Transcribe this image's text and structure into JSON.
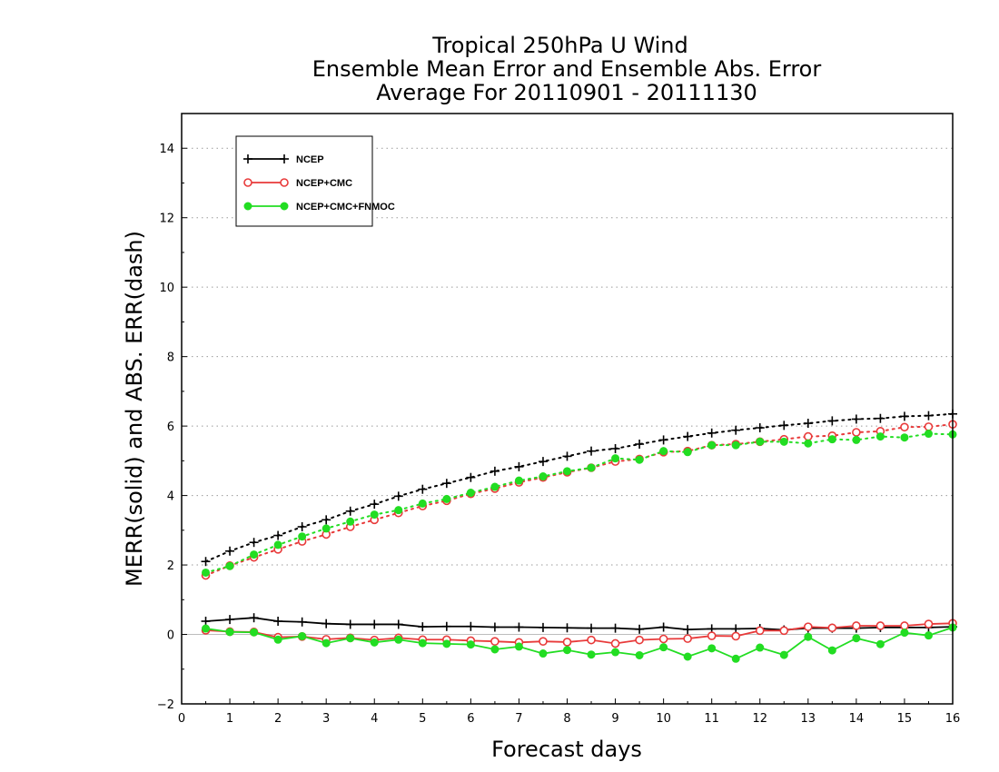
{
  "chart_data": {
    "type": "line",
    "title": [
      "Tropical 250hPa U Wind",
      "Ensemble Mean Error and Ensemble Abs. Error",
      "Average For 20110901 - 20111130"
    ],
    "xlabel": "Forecast days",
    "ylabel": "MERR(solid) and ABS. ERR(dash)",
    "xlim": [
      0,
      16
    ],
    "ylim": [
      -2,
      15
    ],
    "xticks": [
      0,
      1,
      2,
      3,
      4,
      5,
      6,
      7,
      8,
      9,
      10,
      11,
      12,
      13,
      14,
      15,
      16
    ],
    "yticks": [
      -2,
      0,
      2,
      4,
      6,
      8,
      10,
      12,
      14
    ],
    "grid": "horizontal dotted",
    "legend_position": "top-left",
    "x": [
      0.5,
      1,
      1.5,
      2,
      2.5,
      3,
      3.5,
      4,
      4.5,
      5,
      5.5,
      6,
      6.5,
      7,
      7.5,
      8,
      8.5,
      9,
      9.5,
      10,
      10.5,
      11,
      11.5,
      12,
      12.5,
      13,
      13.5,
      14,
      14.5,
      15,
      15.5,
      16
    ],
    "series": [
      {
        "name": "NCEP",
        "color": "#000000",
        "marker": "plus",
        "merr": [
          0.38,
          0.43,
          0.48,
          0.38,
          0.36,
          0.31,
          0.29,
          0.29,
          0.29,
          0.22,
          0.23,
          0.23,
          0.21,
          0.21,
          0.2,
          0.19,
          0.18,
          0.18,
          0.15,
          0.21,
          0.14,
          0.16,
          0.16,
          0.17,
          0.13,
          0.18,
          0.18,
          0.18,
          0.2,
          0.2,
          0.2,
          0.22
        ],
        "abs_err": [
          2.1,
          2.4,
          2.65,
          2.85,
          3.1,
          3.3,
          3.55,
          3.75,
          3.98,
          4.18,
          4.35,
          4.52,
          4.7,
          4.83,
          4.98,
          5.13,
          5.28,
          5.35,
          5.48,
          5.6,
          5.7,
          5.8,
          5.88,
          5.95,
          6.02,
          6.08,
          6.15,
          6.2,
          6.22,
          6.28,
          6.3,
          6.35
        ]
      },
      {
        "name": "NCEP+CMC",
        "color": "#e83a3a",
        "marker": "open-circle",
        "merr": [
          0.12,
          0.08,
          0.07,
          -0.08,
          -0.06,
          -0.14,
          -0.1,
          -0.16,
          -0.1,
          -0.15,
          -0.15,
          -0.18,
          -0.2,
          -0.23,
          -0.2,
          -0.22,
          -0.16,
          -0.26,
          -0.16,
          -0.13,
          -0.12,
          -0.04,
          -0.05,
          0.11,
          0.11,
          0.22,
          0.19,
          0.25,
          0.25,
          0.25,
          0.3,
          0.32
        ],
        "abs_err": [
          1.7,
          1.98,
          2.22,
          2.45,
          2.68,
          2.88,
          3.1,
          3.3,
          3.5,
          3.7,
          3.85,
          4.05,
          4.2,
          4.38,
          4.52,
          4.67,
          4.8,
          4.98,
          5.05,
          5.25,
          5.28,
          5.45,
          5.48,
          5.55,
          5.62,
          5.7,
          5.72,
          5.82,
          5.85,
          5.97,
          5.98,
          6.05
        ]
      },
      {
        "name": "NCEP+CMC+FNMOC",
        "color": "#22dd22",
        "marker": "filled-circle",
        "merr": [
          0.17,
          0.07,
          0.06,
          -0.15,
          -0.05,
          -0.25,
          -0.11,
          -0.23,
          -0.15,
          -0.25,
          -0.27,
          -0.29,
          -0.43,
          -0.35,
          -0.55,
          -0.45,
          -0.58,
          -0.51,
          -0.6,
          -0.37,
          -0.64,
          -0.4,
          -0.7,
          -0.38,
          -0.59,
          -0.07,
          -0.46,
          -0.11,
          -0.28,
          0.05,
          -0.03,
          0.2
        ],
        "abs_err": [
          1.78,
          1.97,
          2.3,
          2.58,
          2.82,
          3.05,
          3.25,
          3.45,
          3.58,
          3.77,
          3.9,
          4.08,
          4.25,
          4.43,
          4.55,
          4.7,
          4.8,
          5.07,
          5.03,
          5.28,
          5.25,
          5.45,
          5.45,
          5.55,
          5.55,
          5.5,
          5.62,
          5.6,
          5.7,
          5.67,
          5.78,
          5.76
        ]
      }
    ]
  }
}
